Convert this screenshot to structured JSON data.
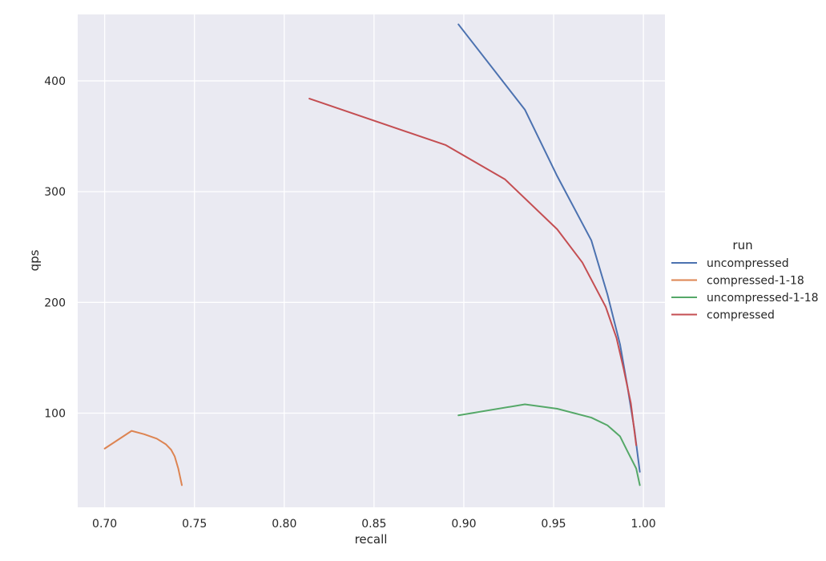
{
  "chart_data": {
    "type": "line",
    "xlabel": "recall",
    "ylabel": "qps",
    "xlim": [
      0.685,
      1.012
    ],
    "ylim": [
      15,
      460
    ],
    "xticks": [
      0.7,
      0.75,
      0.8,
      0.85,
      0.9,
      0.95,
      1.0
    ],
    "xtick_labels": [
      "0.70",
      "0.75",
      "0.80",
      "0.85",
      "0.90",
      "0.95",
      "1.00"
    ],
    "yticks": [
      100,
      200,
      300,
      400
    ],
    "ytick_labels": [
      "100",
      "200",
      "300",
      "400"
    ],
    "grid": true,
    "legend": {
      "title": "run",
      "placement": "right"
    },
    "series": [
      {
        "name": "uncompressed",
        "color": "#4c72b0",
        "points": [
          [
            0.897,
            451
          ],
          [
            0.934,
            374
          ],
          [
            0.952,
            314
          ],
          [
            0.971,
            256
          ],
          [
            0.98,
            207
          ],
          [
            0.987,
            162
          ],
          [
            0.991,
            125
          ],
          [
            0.995,
            85
          ],
          [
            0.998,
            47
          ]
        ]
      },
      {
        "name": "compressed-1-18",
        "color": "#dd8452",
        "points": [
          [
            0.7,
            68
          ],
          [
            0.715,
            84
          ],
          [
            0.722,
            81
          ],
          [
            0.729,
            77
          ],
          [
            0.734,
            72
          ],
          [
            0.737,
            67
          ],
          [
            0.739,
            61
          ],
          [
            0.741,
            50
          ],
          [
            0.743,
            35
          ]
        ]
      },
      {
        "name": "uncompressed-1-18",
        "color": "#55a868",
        "points": [
          [
            0.897,
            98
          ],
          [
            0.934,
            108
          ],
          [
            0.952,
            104
          ],
          [
            0.971,
            96
          ],
          [
            0.98,
            89
          ],
          [
            0.987,
            79
          ],
          [
            0.991,
            66
          ],
          [
            0.996,
            50
          ],
          [
            0.998,
            35
          ]
        ]
      },
      {
        "name": "compressed",
        "color": "#c44e52",
        "points": [
          [
            0.814,
            384
          ],
          [
            0.89,
            342
          ],
          [
            0.923,
            311
          ],
          [
            0.952,
            266
          ],
          [
            0.966,
            236
          ],
          [
            0.979,
            196
          ],
          [
            0.985,
            168
          ],
          [
            0.989,
            140
          ],
          [
            0.993,
            109
          ],
          [
            0.996,
            71
          ]
        ]
      }
    ]
  }
}
